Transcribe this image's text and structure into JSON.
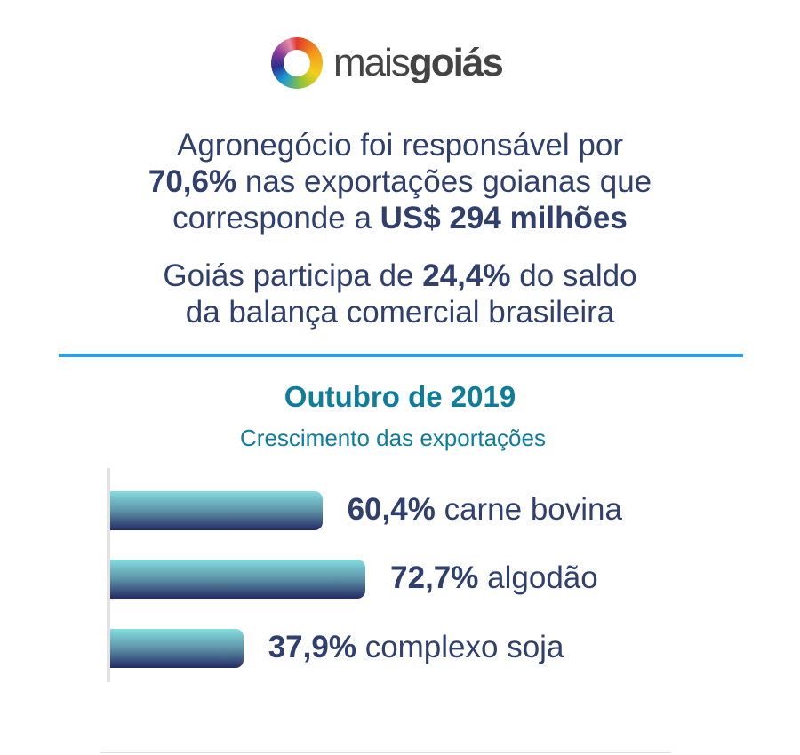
{
  "brand": {
    "name_light": "mais",
    "name_bold": "goiás"
  },
  "headline1": {
    "l1": "Agronegócio foi responsável por",
    "l2_bold": "70,6%",
    "l2_rest": " nas exportações goianas que",
    "l3": "corresponde a ",
    "l3_bold": "US$ 294 milhões"
  },
  "headline2": {
    "l1a": "Goiás participa de ",
    "l1_bold": "24,4%",
    "l1b": " do saldo",
    "l2": "da balança comercial brasileira"
  },
  "chart_data": {
    "type": "bar",
    "orientation": "horizontal",
    "title": "Outubro de 2019",
    "subtitle": "Crescimento das exportações",
    "categories": [
      "carne bovina",
      "algodão",
      "complexo soja"
    ],
    "values": [
      60.4,
      72.7,
      37.9
    ],
    "value_labels": [
      "60,4%",
      "72,7%",
      "37,9%"
    ],
    "xlabel": "",
    "ylabel": "",
    "xlim": [
      0,
      75
    ]
  }
}
